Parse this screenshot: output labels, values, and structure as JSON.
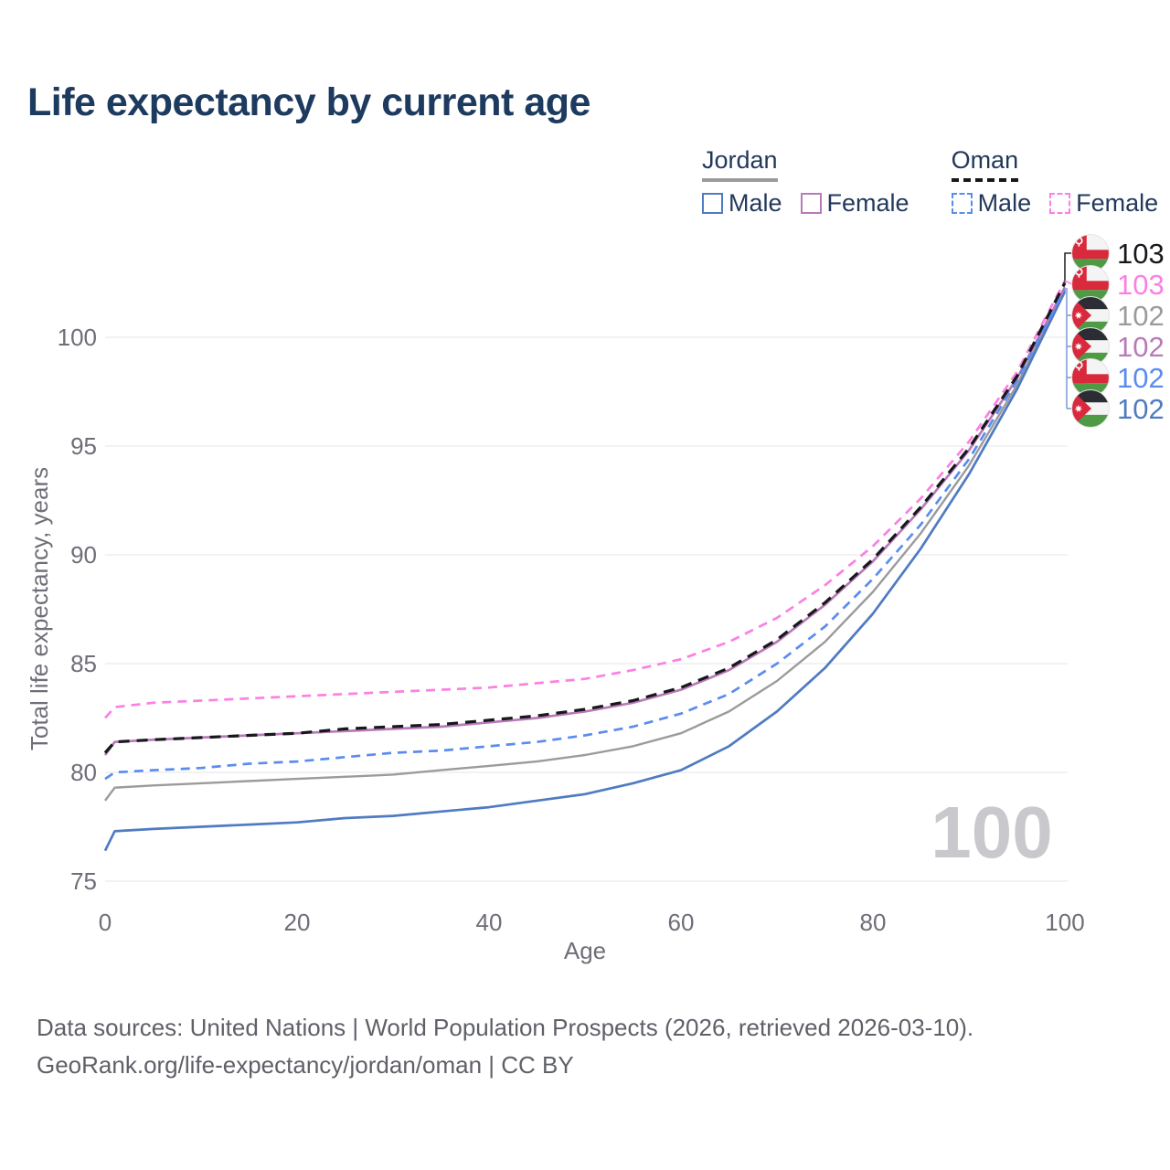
{
  "title": "Life expectancy by current age",
  "legend": {
    "groups": [
      {
        "name": "Jordan",
        "line_style": "solid",
        "underline_color": "#9b9b9b",
        "items": [
          {
            "label": "Male",
            "color": "#4f7bc2",
            "dashed": false
          },
          {
            "label": "Female",
            "color": "#b87ab8",
            "dashed": false
          }
        ]
      },
      {
        "name": "Oman",
        "line_style": "dashed",
        "underline_color": "#17171c",
        "items": [
          {
            "label": "Male",
            "color": "#5a8cf0",
            "dashed": true
          },
          {
            "label": "Female",
            "color": "#fb80e3",
            "dashed": true
          }
        ]
      }
    ]
  },
  "axes": {
    "x_label": "Age",
    "y_label": "Total life expectancy, years",
    "x_ticks": [
      0,
      20,
      40,
      60,
      80,
      100
    ],
    "y_ticks": [
      75,
      80,
      85,
      90,
      95,
      100
    ]
  },
  "watermark": "100",
  "end_labels": [
    {
      "flag": "oman",
      "value": "103",
      "color": "#17171c"
    },
    {
      "flag": "oman",
      "value": "103",
      "color": "#fb80e3"
    },
    {
      "flag": "jordan",
      "value": "102",
      "color": "#9b9b9b"
    },
    {
      "flag": "jordan",
      "value": "102",
      "color": "#b87ab8"
    },
    {
      "flag": "oman",
      "value": "102",
      "color": "#5a8cf0"
    },
    {
      "flag": "jordan",
      "value": "102",
      "color": "#4f7bc2"
    }
  ],
  "footer": {
    "line1": "Data sources: United Nations | World Population Prospects (2026, retrieved 2026-03-10).",
    "line2": "GeoRank.org/life-expectancy/jordan/oman | CC BY"
  },
  "chart_data": {
    "type": "line",
    "title": "Life expectancy by current age",
    "xlabel": "Age",
    "ylabel": "Total life expectancy, years",
    "xlim": [
      0,
      100
    ],
    "ylim": [
      75,
      103
    ],
    "grid": "horizontal",
    "legend_position": "top-right",
    "x": [
      0,
      1,
      5,
      10,
      15,
      20,
      25,
      30,
      35,
      40,
      45,
      50,
      55,
      60,
      65,
      70,
      75,
      80,
      85,
      90,
      95,
      100
    ],
    "series": [
      {
        "name": "Jordan (all)",
        "country": "Jordan",
        "sex": "All",
        "color": "#9b9b9b",
        "dash": "solid",
        "values": [
          78.7,
          79.3,
          79.4,
          79.5,
          79.6,
          79.7,
          79.8,
          79.9,
          80.1,
          80.3,
          80.5,
          80.8,
          81.2,
          81.8,
          82.8,
          84.2,
          86.0,
          88.3,
          91.0,
          94.1,
          97.8,
          102.2
        ]
      },
      {
        "name": "Jordan Male",
        "country": "Jordan",
        "sex": "Male",
        "color": "#4f7bc2",
        "dash": "solid",
        "values": [
          76.4,
          77.3,
          77.4,
          77.5,
          77.6,
          77.7,
          77.9,
          78.0,
          78.2,
          78.4,
          78.7,
          79.0,
          79.5,
          80.1,
          81.2,
          82.8,
          84.8,
          87.3,
          90.3,
          93.7,
          97.6,
          102.1
        ]
      },
      {
        "name": "Jordan Female",
        "country": "Jordan",
        "sex": "Female",
        "color": "#b87ab8",
        "dash": "solid",
        "values": [
          80.8,
          81.4,
          81.5,
          81.6,
          81.7,
          81.8,
          81.9,
          82.0,
          82.1,
          82.3,
          82.5,
          82.8,
          83.2,
          83.8,
          84.7,
          86.0,
          87.7,
          89.7,
          92.1,
          94.8,
          98.1,
          102.3
        ]
      },
      {
        "name": "Oman Male",
        "country": "Oman",
        "sex": "Male",
        "color": "#5a8cf0",
        "dash": "dashed",
        "values": [
          79.7,
          80.0,
          80.1,
          80.2,
          80.4,
          80.5,
          80.7,
          80.9,
          81.0,
          81.2,
          81.4,
          81.7,
          82.1,
          82.7,
          83.6,
          85.0,
          86.7,
          88.9,
          91.4,
          94.4,
          98.0,
          102.2
        ]
      },
      {
        "name": "Oman Female",
        "country": "Oman",
        "sex": "Female",
        "color": "#fb80e3",
        "dash": "dashed",
        "values": [
          82.5,
          83.0,
          83.2,
          83.3,
          83.4,
          83.5,
          83.6,
          83.7,
          83.8,
          83.9,
          84.1,
          84.3,
          84.7,
          85.2,
          86.0,
          87.1,
          88.6,
          90.4,
          92.6,
          95.2,
          98.4,
          102.6
        ]
      },
      {
        "name": "Oman (all)",
        "country": "Oman",
        "sex": "All",
        "color": "#17171c",
        "dash": "dashed",
        "values": [
          80.9,
          81.4,
          81.5,
          81.6,
          81.7,
          81.8,
          82.0,
          82.1,
          82.2,
          82.4,
          82.6,
          82.9,
          83.3,
          83.9,
          84.8,
          86.1,
          87.8,
          89.8,
          92.2,
          94.9,
          98.2,
          102.5
        ]
      }
    ]
  }
}
